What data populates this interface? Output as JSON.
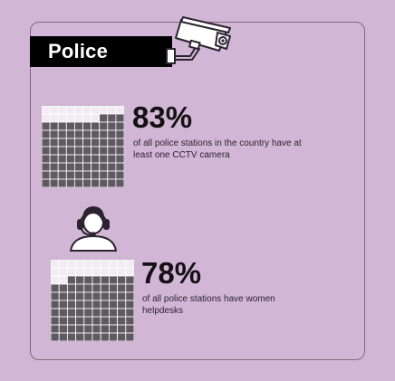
{
  "header": {
    "title": "Police"
  },
  "stats": [
    {
      "value": "83%",
      "fraction": 0.83,
      "description_lines": [
        "of all police stations in the country have at",
        "least one CCTV camera"
      ],
      "icon": "cctv-camera-icon"
    },
    {
      "value": "78%",
      "fraction": 0.78,
      "description_lines": [
        "of all police stations have women",
        "helpdesks"
      ],
      "icon": "headset-agent-icon"
    }
  ],
  "colors": {
    "background": "#d2b6d6",
    "filled_cell": "#5f5a61",
    "empty_cell": "#f1ecf2",
    "grid_line": "#ffffff",
    "title_bar": "#000000",
    "text": "#141014"
  }
}
